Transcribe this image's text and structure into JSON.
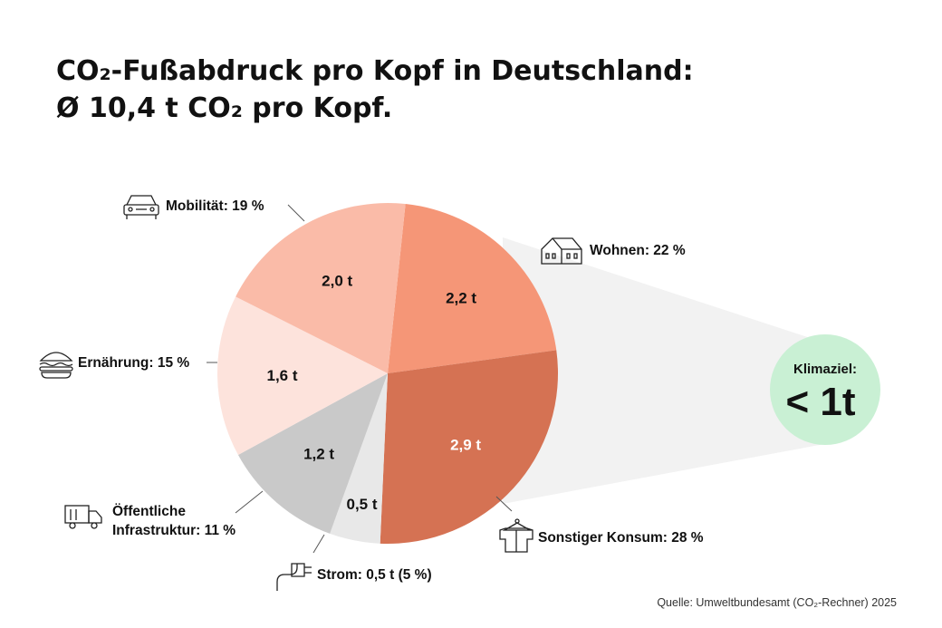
{
  "title": {
    "line1": "CO₂-Fußabdruck pro Kopf in Deutschland:",
    "line2": "Ø 10,4 t CO₂ pro Kopf."
  },
  "source": "Quelle: Umweltbundesamt (CO₂-Rechner) 2025",
  "target": {
    "label": "Klimaziel:",
    "value": "< 1t",
    "color": "#c9f0d4"
  },
  "chart_data": {
    "type": "pie",
    "title": "CO₂-Fußabdruck pro Kopf in Deutschland: Ø 10,4 t CO₂ pro Kopf.",
    "unit": "t",
    "total": 10.4,
    "slices": [
      {
        "name": "Wohnen",
        "value": 2.2,
        "value_label": "2,2 t",
        "percent_label": "Wohnen: 22 %",
        "color": "#f59677",
        "icon": "house-icon"
      },
      {
        "name": "Sonstiger Konsum",
        "value": 2.9,
        "value_label": "2,9 t",
        "percent_label": "Sonstiger Konsum: 28 %",
        "color": "#d57253",
        "icon": "clothes-icon"
      },
      {
        "name": "Strom",
        "value": 0.5,
        "value_label": "0,5 t",
        "percent_label": "Strom: 0,5 t (5 %)",
        "color": "#e8e8e8",
        "icon": "plug-icon"
      },
      {
        "name": "Öffentliche Infrastruktur",
        "value": 1.2,
        "value_label": "1,2 t",
        "percent_label_lines": [
          "Öffentliche",
          "Infrastruktur: 11 %"
        ],
        "color": "#c9c9c9",
        "icon": "truck-icon"
      },
      {
        "name": "Ernährung",
        "value": 1.6,
        "value_label": "1,6 t",
        "percent_label": "Ernährung: 15 %",
        "color": "#fde3dc",
        "icon": "burger-icon"
      },
      {
        "name": "Mobilität",
        "value": 2.0,
        "value_label": "2,0 t",
        "percent_label": "Mobilität: 19 %",
        "color": "#fabba8",
        "icon": "car-icon"
      }
    ]
  }
}
